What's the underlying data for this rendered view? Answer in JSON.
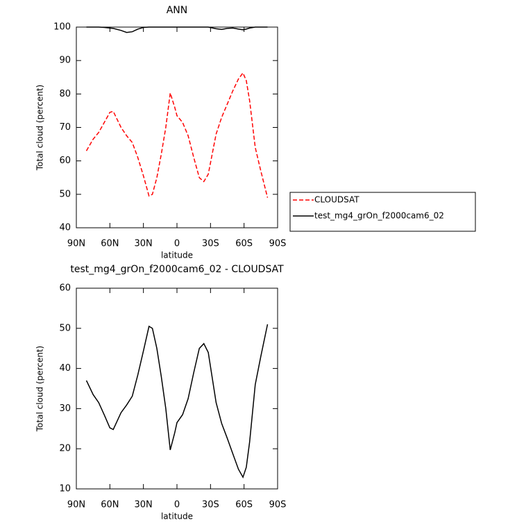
{
  "chart_data": [
    {
      "type": "line",
      "title": "ANN",
      "xlabel": "latitude",
      "ylabel": "Total cloud (percent)",
      "x": [
        81,
        75,
        70,
        65,
        60,
        57,
        50,
        45,
        40,
        35,
        30,
        25,
        22,
        18,
        14,
        10,
        6,
        2,
        0,
        -5,
        -10,
        -15,
        -20,
        -24,
        -28,
        -35,
        -40,
        -45,
        -50,
        -55,
        -59,
        -62,
        -65,
        -70,
        -75,
        -81
      ],
      "series": [
        {
          "name": "CLOUDSAT",
          "color": "#ff0000",
          "dash": "dashed",
          "values": [
            63,
            66.5,
            68.5,
            71.5,
            74.5,
            74.8,
            70,
            67.5,
            65.5,
            61,
            55.5,
            49.5,
            50,
            55,
            62,
            70,
            80.3,
            76,
            73.5,
            71.5,
            67.5,
            61,
            55,
            53.8,
            56,
            68,
            73,
            77,
            81,
            84.5,
            86.3,
            84,
            78,
            64,
            57,
            49
          ]
        },
        {
          "name": "test_mg4_grOn_f2000cam6_02",
          "color": "#000000",
          "dash": "solid",
          "values": [
            100,
            100,
            100,
            99.9,
            99.7,
            99.6,
            99,
            98.4,
            98.6,
            99.4,
            99.9,
            100,
            100,
            100,
            100,
            100,
            100,
            100,
            100,
            100,
            100,
            100,
            100,
            100,
            100,
            99.5,
            99.3,
            99.6,
            99.7,
            99.4,
            99.2,
            99.4,
            99.7,
            100,
            100,
            100
          ]
        }
      ],
      "xlim": [
        90,
        -90
      ],
      "xticks": [
        {
          "value": 90,
          "label": "90N"
        },
        {
          "value": 60,
          "label": "60N"
        },
        {
          "value": 30,
          "label": "30N"
        },
        0,
        {
          "value": -30,
          "label": "30S"
        },
        {
          "value": -60,
          "label": "60S"
        },
        {
          "value": -90,
          "label": "90S"
        }
      ],
      "ylim": [
        40,
        100
      ],
      "yticks": [
        40,
        50,
        60,
        70,
        80,
        90,
        100
      ],
      "legend": "right"
    },
    {
      "type": "line",
      "title": "test_mg4_grOn_f2000cam6_02 - CLOUDSAT",
      "xlabel": "latitude",
      "ylabel": "Total cloud (percent)",
      "x": [
        81,
        75,
        70,
        65,
        60,
        57,
        50,
        45,
        40,
        35,
        30,
        25,
        22,
        18,
        14,
        10,
        6,
        2,
        0,
        -5,
        -10,
        -15,
        -20,
        -24,
        -28,
        -35,
        -40,
        -45,
        -50,
        -55,
        -59,
        -62,
        -65,
        -70,
        -75,
        -81
      ],
      "series": [
        {
          "color": "#000000",
          "dash": "solid",
          "values": [
            37,
            33.5,
            31.5,
            28.4,
            25.2,
            24.8,
            29,
            30.9,
            33.1,
            38.4,
            44.4,
            50.5,
            50,
            45,
            38,
            30,
            19.7,
            24,
            26.5,
            28.5,
            32.5,
            39,
            45,
            46.2,
            44,
            31.5,
            26.3,
            22.6,
            18.7,
            14.9,
            12.9,
            15.4,
            21.7,
            36,
            43,
            51
          ]
        }
      ],
      "xlim": [
        90,
        -90
      ],
      "xticks": [
        {
          "value": 90,
          "label": "90N"
        },
        {
          "value": 60,
          "label": "60N"
        },
        {
          "value": 30,
          "label": "30N"
        },
        0,
        {
          "value": -30,
          "label": "30S"
        },
        {
          "value": -60,
          "label": "60S"
        },
        {
          "value": -90,
          "label": "90S"
        }
      ],
      "ylim": [
        10,
        60
      ],
      "yticks": [
        10,
        20,
        30,
        40,
        50,
        60
      ]
    }
  ]
}
